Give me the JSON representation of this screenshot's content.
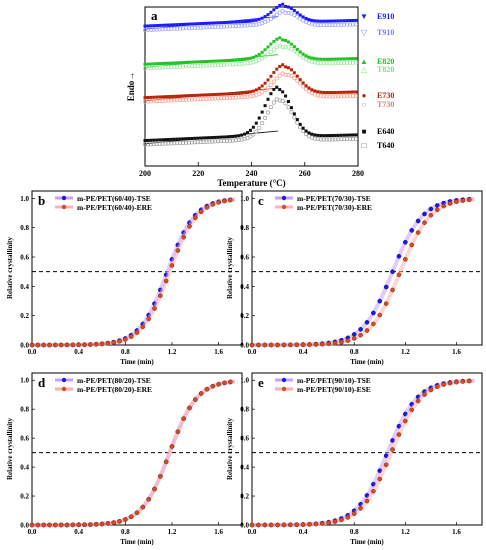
{
  "chart_data": [
    {
      "panel": "a",
      "type": "scatter",
      "xlabel": "Temperature (°C)",
      "ylabel": "Endo→",
      "xlim": [
        200,
        280
      ],
      "xticks": [
        "200",
        "220",
        "240",
        "260",
        "280"
      ],
      "legend": [
        "E910",
        "T910",
        "E820",
        "T820",
        "E730",
        "T730",
        "E640",
        "T640"
      ],
      "colors": {
        "910": "#1a1aff",
        "820": "#22c322",
        "730": "#b5250a",
        "640": "#111111"
      },
      "groups": [
        {
          "id": "910",
          "base": 0.88,
          "peak_x": 252.5,
          "peak_h": 0.1,
          "width": 4.5
        },
        {
          "id": "820",
          "base": 0.64,
          "peak_x": 251.5,
          "peak_h": 0.13,
          "width": 5.0
        },
        {
          "id": "730",
          "base": 0.43,
          "peak_x": 252.5,
          "peak_h": 0.17,
          "width": 5.0
        },
        {
          "id": "640",
          "base": 0.16,
          "peak_x": 250.0,
          "peak_h": 0.3,
          "width": 5.0
        }
      ]
    },
    {
      "panel": "b",
      "type": "line",
      "xlabel": "Time (min)",
      "ylabel": "Relative crystallinity",
      "xlim": [
        0,
        1.8
      ],
      "ylim": [
        0,
        1.05
      ],
      "xticks": [
        "0.0",
        "0.4",
        "0.8",
        "1.2",
        "1.6"
      ],
      "yticks": [
        "0.0",
        "0.2",
        "0.4",
        "0.6",
        "0.8",
        "1.0"
      ],
      "reference_line": 0.5,
      "series": [
        {
          "name": "m-PE/PET(60/40)-TSE",
          "half_time": 1.16,
          "k": 8.5,
          "color": "#1a1aee"
        },
        {
          "name": "m-PE/PET(60/40)-ERE",
          "half_time": 1.18,
          "k": 8.5,
          "color": "#d94a20"
        }
      ]
    },
    {
      "panel": "c",
      "type": "line",
      "xlabel": "Time (min)",
      "ylabel": "Relative crystallinity",
      "xlim": [
        0,
        1.8
      ],
      "ylim": [
        0,
        1.05
      ],
      "xticks": [
        "0.0",
        "0.4",
        "0.8",
        "1.2",
        "1.6"
      ],
      "yticks": [
        "0.0",
        "0.2",
        "0.4",
        "0.6",
        "0.8",
        "1.0"
      ],
      "reference_line": 0.5,
      "series": [
        {
          "name": "m-PE/PET(70/30)-TSE",
          "half_time": 1.1,
          "k": 8.5,
          "color": "#1a1aee"
        },
        {
          "name": "m-PE/PET(70/30)-ERE",
          "half_time": 1.16,
          "k": 8.5,
          "color": "#d94a20"
        }
      ]
    },
    {
      "panel": "d",
      "type": "line",
      "xlabel": "Time (min)",
      "ylabel": "Relative crystallinity",
      "xlim": [
        0,
        1.8
      ],
      "ylim": [
        0,
        1.05
      ],
      "xticks": [
        "0.0",
        "0.4",
        "0.8",
        "1.2",
        "1.6"
      ],
      "yticks": [
        "0.0",
        "0.2",
        "0.4",
        "0.6",
        "0.8",
        "1.0"
      ],
      "reference_line": 0.5,
      "series": [
        {
          "name": "m-PE/PET(80/20)-TSE",
          "half_time": 1.18,
          "k": 8.5,
          "color": "#1a1aee"
        },
        {
          "name": "m-PE/PET(80/20)-ERE",
          "half_time": 1.18,
          "k": 8.5,
          "color": "#d94a20"
        }
      ]
    },
    {
      "panel": "e",
      "type": "line",
      "xlabel": "Time (min)",
      "ylabel": "Relative crystallinity",
      "xlim": [
        0,
        1.8
      ],
      "ylim": [
        0,
        1.05
      ],
      "xticks": [
        "0.0",
        "0.4",
        "0.8",
        "1.2",
        "1.6"
      ],
      "yticks": [
        "0.0",
        "0.2",
        "0.4",
        "0.6",
        "0.8",
        "1.0"
      ],
      "reference_line": 0.5,
      "series": [
        {
          "name": "m-PE/PET(90/10)-TSE",
          "half_time": 1.06,
          "k": 8.5,
          "color": "#1a1aee"
        },
        {
          "name": "m-PE/PET(90/10)-ESE",
          "half_time": 1.09,
          "k": 8.5,
          "color": "#d94a20"
        }
      ]
    }
  ]
}
